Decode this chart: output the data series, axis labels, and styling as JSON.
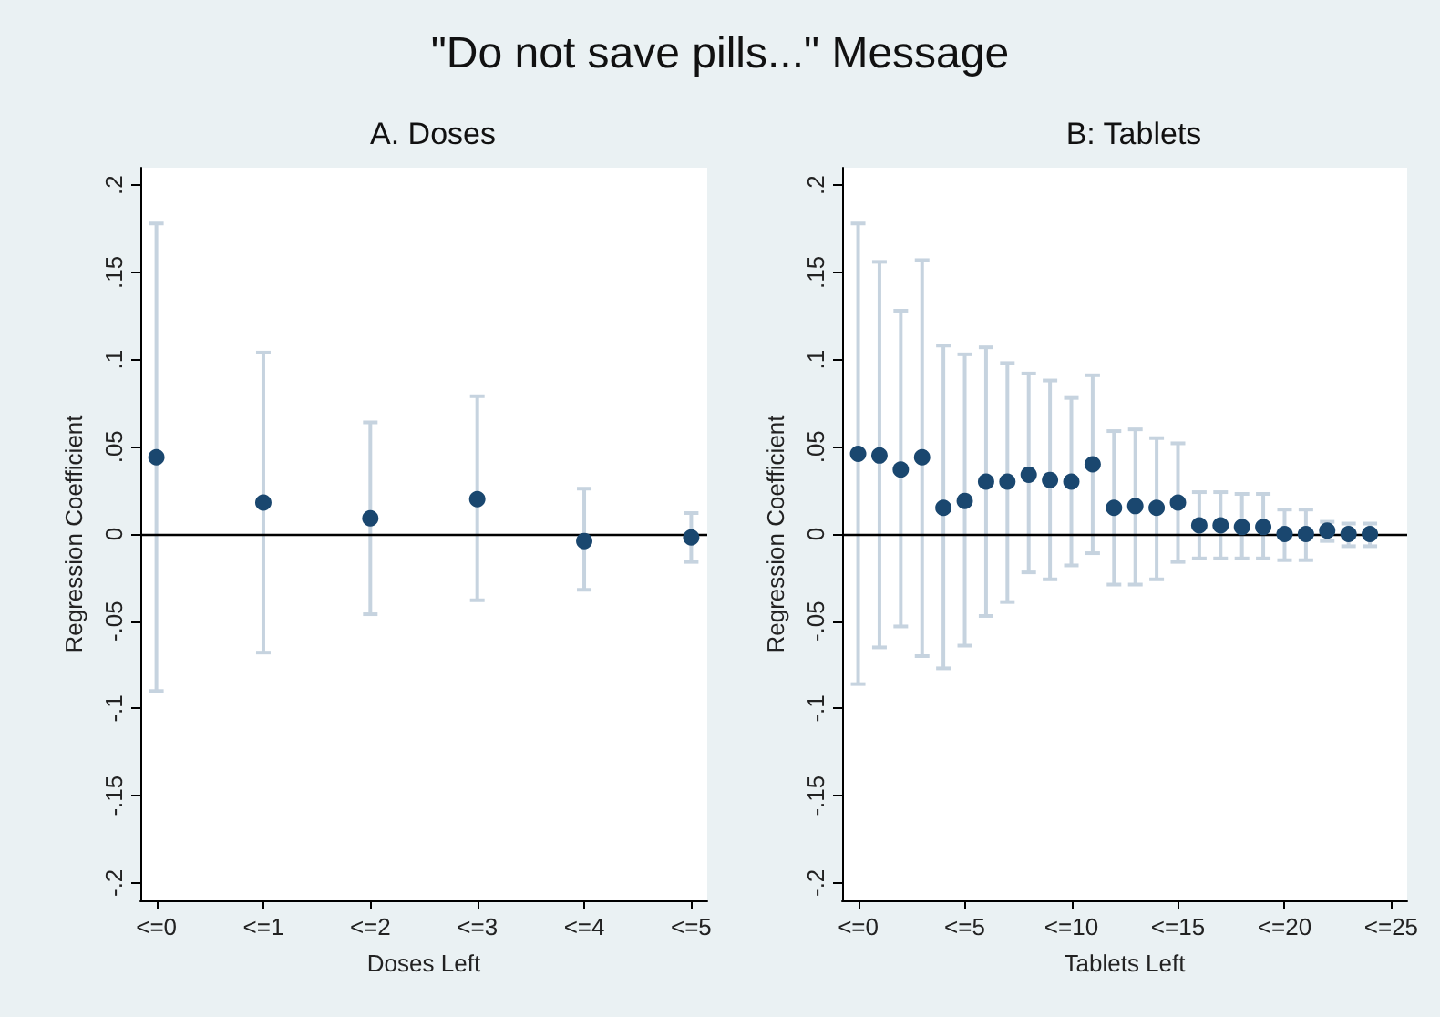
{
  "chart_data": [
    {
      "type": "scatter",
      "title": "\"Do not save pills...\" Message",
      "subtitle": "A. Doses",
      "xlabel": "Doses Left",
      "ylabel": "Regression Coefficient",
      "categories": [
        "<=0",
        "<=1",
        "<=2",
        "<=3",
        "<=4",
        "<=5"
      ],
      "series": [
        {
          "color": "#1a476f",
          "values": [
            0.044,
            0.018,
            0.009,
            0.02,
            -0.004,
            -0.002
          ],
          "errors": [
            [
              -0.09,
              0.178
            ],
            [
              -0.068,
              0.104
            ],
            [
              -0.046,
              0.064
            ],
            [
              -0.038,
              0.079
            ],
            [
              -0.032,
              0.026
            ],
            [
              -0.016,
              0.012
            ]
          ]
        }
      ],
      "ylim": [
        -0.21,
        0.21
      ],
      "yticks": [
        {
          "value": -0.2,
          "label": "-.2"
        },
        {
          "value": -0.15,
          "label": "-.15"
        },
        {
          "value": -0.1,
          "label": "-.1"
        },
        {
          "value": -0.05,
          "label": "-.05"
        },
        0,
        {
          "value": 0.05,
          "label": ".05"
        },
        {
          "value": 0.1,
          "label": ".1"
        },
        {
          "value": 0.15,
          "label": ".15"
        },
        {
          "value": 0.2,
          "label": ".2"
        }
      ],
      "ref_lines": [
        {
          "axis": "y",
          "value": 0,
          "color": "#000000"
        }
      ],
      "marker": "circle"
    },
    {
      "type": "scatter",
      "subtitle": "B: Tablets",
      "xlabel": "Tablets Left",
      "ylabel": "Regression Coefficient",
      "categories": [
        "<=0",
        null,
        null,
        null,
        null,
        "<=5",
        null,
        null,
        null,
        null,
        "<=10",
        null,
        null,
        null,
        null,
        "<=15",
        null,
        null,
        null,
        null,
        "<=20",
        null,
        null,
        null,
        null,
        "<=25"
      ],
      "series": [
        {
          "color": "#1a476f",
          "values": [
            0.046,
            0.045,
            0.037,
            0.044,
            0.015,
            0.019,
            0.03,
            0.03,
            0.034,
            0.031,
            0.03,
            0.04,
            0.015,
            0.016,
            0.015,
            0.018,
            0.005,
            0.005,
            0.004,
            0.004,
            0.0,
            0.0,
            0.002,
            0.0,
            0.0,
            null
          ],
          "errors": [
            [
              -0.086,
              0.178
            ],
            [
              -0.065,
              0.156
            ],
            [
              -0.053,
              0.128
            ],
            [
              -0.07,
              0.157
            ],
            [
              -0.077,
              0.108
            ],
            [
              -0.064,
              0.103
            ],
            [
              -0.047,
              0.107
            ],
            [
              -0.039,
              0.098
            ],
            [
              -0.022,
              0.092
            ],
            [
              -0.026,
              0.088
            ],
            [
              -0.018,
              0.078
            ],
            [
              -0.011,
              0.091
            ],
            [
              -0.029,
              0.059
            ],
            [
              -0.029,
              0.06
            ],
            [
              -0.026,
              0.055
            ],
            [
              -0.016,
              0.052
            ],
            [
              -0.014,
              0.024
            ],
            [
              -0.014,
              0.024
            ],
            [
              -0.014,
              0.023
            ],
            [
              -0.014,
              0.023
            ],
            [
              -0.015,
              0.014
            ],
            [
              -0.015,
              0.014
            ],
            [
              -0.004,
              0.007
            ],
            [
              -0.007,
              0.006
            ],
            [
              -0.007,
              0.006
            ],
            null
          ]
        }
      ],
      "ylim": [
        -0.21,
        0.21
      ],
      "yticks": [
        {
          "value": -0.2,
          "label": "-.2"
        },
        {
          "value": -0.15,
          "label": "-.15"
        },
        {
          "value": -0.1,
          "label": "-.1"
        },
        {
          "value": -0.05,
          "label": "-.05"
        },
        0,
        {
          "value": 0.05,
          "label": ".05"
        },
        {
          "value": 0.1,
          "label": ".1"
        },
        {
          "value": 0.15,
          "label": ".15"
        },
        {
          "value": 0.2,
          "label": ".2"
        }
      ],
      "ref_lines": [
        {
          "axis": "y",
          "value": 0,
          "color": "#000000"
        }
      ],
      "marker": "circle"
    }
  ]
}
